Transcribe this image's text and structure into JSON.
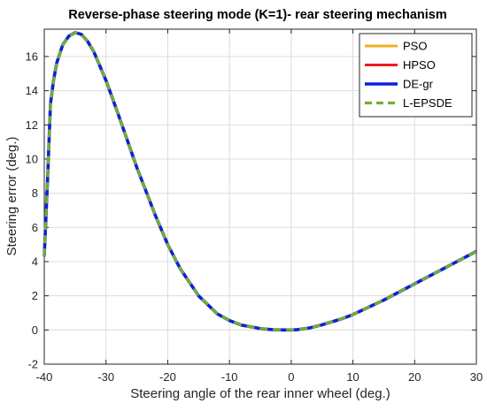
{
  "chart_data": {
    "type": "line",
    "title": "Reverse-phase steering mode (K=1)- rear steering mechanism",
    "xlabel": "Steering angle of the rear inner wheel (deg.)",
    "ylabel": "Steering error (deg.)",
    "xlim": [
      -40,
      30
    ],
    "ylim": [
      -2,
      17.6
    ],
    "xticks": [
      -40,
      -30,
      -20,
      -10,
      0,
      10,
      20,
      30
    ],
    "xtick_labels": [
      "-40",
      "-30",
      "-20",
      "-10",
      "0",
      "10",
      "20",
      "30"
    ],
    "yticks": [
      -2,
      0,
      2,
      4,
      6,
      8,
      10,
      12,
      14,
      16
    ],
    "ytick_labels": [
      "-2",
      "0",
      "2",
      "4",
      "6",
      "8",
      "10",
      "12",
      "14",
      "16"
    ],
    "grid": true,
    "legend_position": "top-right",
    "x": [
      -40,
      -39.5,
      -39,
      -38.5,
      -38,
      -37,
      -36,
      -35,
      -34,
      -33,
      -32,
      -30,
      -28,
      -25,
      -22,
      -20,
      -18,
      -15,
      -12,
      -10,
      -8,
      -5,
      -3,
      -1,
      0,
      1,
      3,
      5,
      8,
      10,
      15,
      20,
      25,
      30
    ],
    "series": [
      {
        "name": "PSO",
        "color": "#EDB120",
        "dash": "",
        "width": 3,
        "values": [
          4.3,
          8.5,
          13.2,
          14.6,
          15.6,
          16.7,
          17.2,
          17.4,
          17.3,
          16.9,
          16.3,
          14.6,
          12.6,
          9.5,
          6.7,
          5.0,
          3.6,
          2.0,
          0.95,
          0.55,
          0.28,
          0.08,
          0.02,
          0.0,
          0.0,
          0.02,
          0.12,
          0.3,
          0.63,
          0.9,
          1.75,
          2.7,
          3.65,
          4.6
        ]
      },
      {
        "name": "HPSO",
        "color": "#EE1C1C",
        "dash": "",
        "width": 3,
        "values": [
          4.3,
          8.5,
          13.2,
          14.6,
          15.6,
          16.7,
          17.2,
          17.4,
          17.3,
          16.9,
          16.3,
          14.6,
          12.6,
          9.5,
          6.7,
          5.0,
          3.6,
          2.0,
          0.95,
          0.55,
          0.28,
          0.08,
          0.02,
          0.0,
          0.0,
          0.02,
          0.12,
          0.3,
          0.63,
          0.9,
          1.75,
          2.7,
          3.65,
          4.6
        ]
      },
      {
        "name": "DE-gr",
        "color": "#0B1FE0",
        "dash": "",
        "width": 3.6,
        "values": [
          4.3,
          8.5,
          13.2,
          14.6,
          15.6,
          16.7,
          17.2,
          17.4,
          17.3,
          16.9,
          16.3,
          14.6,
          12.6,
          9.5,
          6.7,
          5.0,
          3.6,
          2.0,
          0.95,
          0.55,
          0.28,
          0.08,
          0.02,
          0.0,
          0.0,
          0.02,
          0.12,
          0.3,
          0.63,
          0.9,
          1.75,
          2.7,
          3.65,
          4.6
        ]
      },
      {
        "name": "L-EPSDE",
        "color": "#77AC30",
        "dash": "9 6",
        "width": 3.2,
        "values": [
          4.3,
          8.5,
          13.2,
          14.6,
          15.6,
          16.7,
          17.2,
          17.4,
          17.3,
          16.9,
          16.3,
          14.6,
          12.6,
          9.5,
          6.7,
          5.0,
          3.6,
          2.0,
          0.95,
          0.55,
          0.28,
          0.08,
          0.02,
          0.0,
          0.0,
          0.02,
          0.12,
          0.3,
          0.63,
          0.9,
          1.75,
          2.7,
          3.65,
          4.6
        ]
      }
    ]
  }
}
